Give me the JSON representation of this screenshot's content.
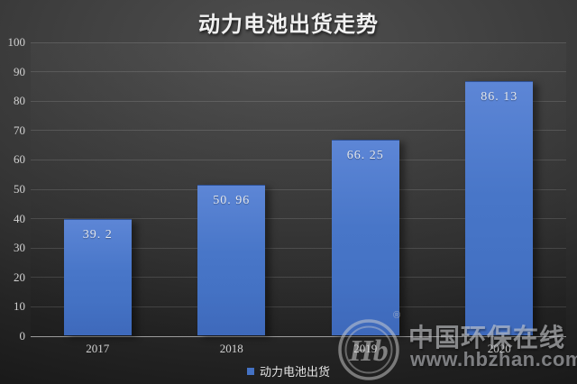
{
  "title": "动力电池出货走势",
  "legend": {
    "marker_color": "#4472c4",
    "label": "动力电池出货"
  },
  "watermark": {
    "logo": "hbzhan-logo",
    "logo_monogram": "Hb",
    "registered_mark": "®",
    "brand_cn": "中国环保在线",
    "brand_url": "www.hbzhan.com",
    "color": "#cccccc"
  },
  "chart_data": {
    "type": "bar",
    "title": "动力电池出货走势",
    "categories": [
      "2017",
      "2018",
      "2019",
      "2020"
    ],
    "series": [
      {
        "name": "动力电池出货",
        "values": [
          39.2,
          50.96,
          66.25,
          86.13
        ]
      }
    ],
    "value_labels": [
      "39. 2",
      "50. 96",
      "66. 25",
      "86. 13"
    ],
    "xlabel": "",
    "ylabel": "",
    "ylim": [
      0,
      100
    ],
    "yticks": [
      0,
      10,
      20,
      30,
      40,
      50,
      60,
      70,
      80,
      90,
      100
    ],
    "grid": true,
    "legend_position": "bottom",
    "bar_color": "#4472c4",
    "background": "dark-gradient"
  }
}
